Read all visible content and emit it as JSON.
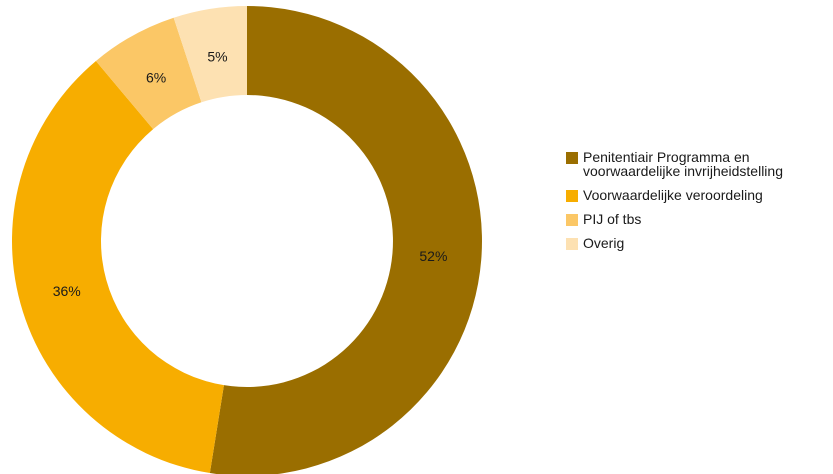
{
  "chart_data": {
    "type": "pie",
    "variant": "donut",
    "categories": [
      "Penitentiair Programma en voorwaardelijke invrijheidstelling",
      "Voorwaardelijke veroordeling",
      "PIJ of tbs",
      "Overig"
    ],
    "values": [
      52,
      36,
      6,
      5
    ],
    "value_labels": [
      "52%",
      "36%",
      "6%",
      "5%"
    ],
    "unit": "%",
    "colors": [
      "#9a6e00",
      "#f7ad00",
      "#fbc766",
      "#fde1b2"
    ],
    "legend_position": "right",
    "start_angle": "top",
    "direction": "clockwise"
  }
}
